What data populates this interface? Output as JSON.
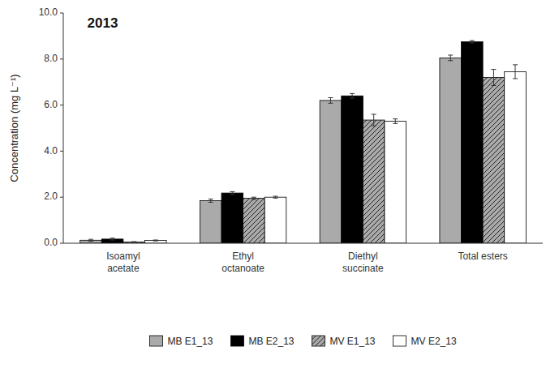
{
  "chart_data": {
    "type": "bar",
    "title": "2013",
    "ylabel": "Concentration (mg L⁻¹)",
    "categories": [
      "Isoamyl\nacetate",
      "Ethyl\noctanoate",
      "Diethyl\nsuccinate",
      "Total esters"
    ],
    "series": [
      {
        "name": "MB E1_13",
        "color": "#aaaaaa",
        "values": [
          0.13,
          1.85,
          6.2,
          8.05
        ],
        "errors": [
          0.04,
          0.07,
          0.12,
          0.12
        ]
      },
      {
        "name": "MB E2_13",
        "color": "#000000",
        "values": [
          0.18,
          2.18,
          6.4,
          8.75
        ],
        "errors": [
          0.04,
          0.06,
          0.1,
          0.05
        ]
      },
      {
        "name": "MV E1_13",
        "color": "#aaaaaa",
        "values": [
          0.05,
          1.95,
          5.35,
          7.2
        ],
        "errors": [
          0.02,
          0.05,
          0.25,
          0.35
        ]
      },
      {
        "name": "MV E2_13",
        "color": "#ffffff",
        "values": [
          0.12,
          2.0,
          5.3,
          7.45
        ],
        "errors": [
          0.02,
          0.04,
          0.1,
          0.3
        ]
      }
    ],
    "ylim": [
      0,
      10.0
    ],
    "yticks": [
      {
        "value": 0.0,
        "label": "0.0"
      },
      {
        "value": 2.0,
        "label": "2.0"
      },
      {
        "value": 4.0,
        "label": "4.0"
      },
      {
        "value": 6.0,
        "label": "6.0"
      },
      {
        "value": 8.0,
        "label": "8.0"
      },
      {
        "value": 10.0,
        "label": "10.0"
      }
    ],
    "grid": false,
    "legend": "bottom"
  }
}
